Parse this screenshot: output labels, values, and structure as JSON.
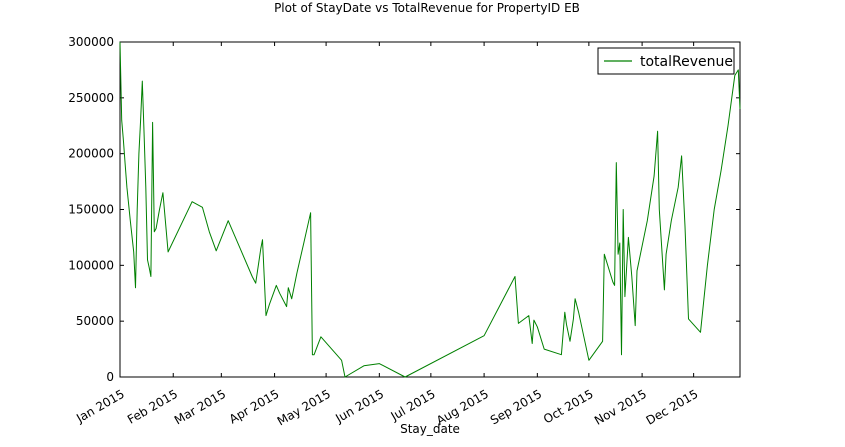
{
  "chart_data": {
    "type": "line",
    "title": "Plot of StayDate vs TotalRevenue for PropertyID EB",
    "xlabel": "Stay_date",
    "ylabel": "",
    "xlim": [
      "2015-01-01",
      "2015-12-28"
    ],
    "ylim": [
      0,
      300000
    ],
    "grid": false,
    "legend_position": "top-right",
    "y_ticks": [
      {
        "value": 0,
        "label": "0"
      },
      {
        "value": 50000,
        "label": "50000"
      },
      {
        "value": 100000,
        "label": "100000"
      },
      {
        "value": 150000,
        "label": "150000"
      },
      {
        "value": 200000,
        "label": "200000"
      },
      {
        "value": 250000,
        "label": "250000"
      },
      {
        "value": 300000,
        "label": "300000"
      }
    ],
    "x_ticks": [
      {
        "date": "2015-01-01",
        "label": "Jan 2015"
      },
      {
        "date": "2015-02-01",
        "label": "Feb 2015"
      },
      {
        "date": "2015-03-01",
        "label": "Mar 2015"
      },
      {
        "date": "2015-04-01",
        "label": "Apr 2015"
      },
      {
        "date": "2015-05-01",
        "label": "May 2015"
      },
      {
        "date": "2015-06-01",
        "label": "Jun 2015"
      },
      {
        "date": "2015-07-01",
        "label": "Jul 2015"
      },
      {
        "date": "2015-08-01",
        "label": "Aug 2015"
      },
      {
        "date": "2015-09-01",
        "label": "Sep 2015"
      },
      {
        "date": "2015-10-01",
        "label": "Oct 2015"
      },
      {
        "date": "2015-11-01",
        "label": "Nov 2015"
      },
      {
        "date": "2015-12-01",
        "label": "Dec 2015"
      }
    ],
    "series": [
      {
        "name": "totalRevenue",
        "color": "#008000",
        "points": [
          [
            "2015-01-01",
            300000
          ],
          [
            "2015-01-02",
            230000
          ],
          [
            "2015-01-03",
            212000
          ],
          [
            "2015-01-04",
            190000
          ],
          [
            "2015-01-05",
            170000
          ],
          [
            "2015-01-07",
            140000
          ],
          [
            "2015-01-09",
            112000
          ],
          [
            "2015-01-10",
            80000
          ],
          [
            "2015-01-11",
            150000
          ],
          [
            "2015-01-12",
            200000
          ],
          [
            "2015-01-13",
            230000
          ],
          [
            "2015-01-14",
            265000
          ],
          [
            "2015-01-15",
            220000
          ],
          [
            "2015-01-16",
            170000
          ],
          [
            "2015-01-17",
            105000
          ],
          [
            "2015-01-18",
            98000
          ],
          [
            "2015-01-19",
            90000
          ],
          [
            "2015-01-20",
            228000
          ],
          [
            "2015-01-21",
            130000
          ],
          [
            "2015-01-22",
            133000
          ],
          [
            "2015-01-24",
            150000
          ],
          [
            "2015-01-26",
            165000
          ],
          [
            "2015-01-29",
            112000
          ],
          [
            "2015-02-12",
            157000
          ],
          [
            "2015-02-18",
            152000
          ],
          [
            "2015-02-22",
            130000
          ],
          [
            "2015-02-26",
            113000
          ],
          [
            "2015-03-05",
            140000
          ],
          [
            "2015-03-12",
            115000
          ],
          [
            "2015-03-19",
            90000
          ],
          [
            "2015-03-21",
            84000
          ],
          [
            "2015-03-24",
            115000
          ],
          [
            "2015-03-25",
            123000
          ],
          [
            "2015-03-27",
            55000
          ],
          [
            "2015-03-29",
            65000
          ],
          [
            "2015-04-02",
            82000
          ],
          [
            "2015-04-04",
            75000
          ],
          [
            "2015-04-08",
            63000
          ],
          [
            "2015-04-09",
            80000
          ],
          [
            "2015-04-11",
            70000
          ],
          [
            "2015-04-14",
            93000
          ],
          [
            "2015-04-18",
            120000
          ],
          [
            "2015-04-22",
            147000
          ],
          [
            "2015-04-23",
            20000
          ],
          [
            "2015-04-24",
            20000
          ],
          [
            "2015-04-26",
            28000
          ],
          [
            "2015-04-28",
            36000
          ],
          [
            "2015-05-10",
            15000
          ],
          [
            "2015-05-12",
            0
          ],
          [
            "2015-05-23",
            10000
          ],
          [
            "2015-06-01",
            12000
          ],
          [
            "2015-06-16",
            0
          ],
          [
            "2015-08-01",
            37000
          ],
          [
            "2015-08-19",
            90000
          ],
          [
            "2015-08-21",
            48000
          ],
          [
            "2015-08-27",
            55000
          ],
          [
            "2015-08-29",
            30000
          ],
          [
            "2015-08-30",
            51000
          ],
          [
            "2015-09-01",
            45000
          ],
          [
            "2015-09-05",
            25000
          ],
          [
            "2015-09-15",
            20000
          ],
          [
            "2015-09-17",
            58000
          ],
          [
            "2015-09-18",
            47000
          ],
          [
            "2015-09-20",
            32000
          ],
          [
            "2015-09-22",
            52000
          ],
          [
            "2015-09-23",
            70000
          ],
          [
            "2015-09-25",
            58000
          ],
          [
            "2015-10-01",
            15000
          ],
          [
            "2015-10-09",
            32000
          ],
          [
            "2015-10-10",
            110000
          ],
          [
            "2015-10-15",
            85000
          ],
          [
            "2015-10-16",
            82000
          ],
          [
            "2015-10-17",
            192000
          ],
          [
            "2015-10-18",
            110000
          ],
          [
            "2015-10-19",
            120000
          ],
          [
            "2015-10-20",
            20000
          ],
          [
            "2015-10-21",
            150000
          ],
          [
            "2015-10-22",
            72000
          ],
          [
            "2015-10-24",
            125000
          ],
          [
            "2015-10-26",
            90000
          ],
          [
            "2015-10-28",
            46000
          ],
          [
            "2015-10-29",
            95000
          ],
          [
            "2015-11-04",
            140000
          ],
          [
            "2015-11-08",
            180000
          ],
          [
            "2015-11-10",
            220000
          ],
          [
            "2015-11-11",
            150000
          ],
          [
            "2015-11-14",
            78000
          ],
          [
            "2015-11-15",
            110000
          ],
          [
            "2015-11-18",
            140000
          ],
          [
            "2015-11-22",
            170000
          ],
          [
            "2015-11-24",
            198000
          ],
          [
            "2015-11-26",
            135000
          ],
          [
            "2015-11-28",
            52000
          ],
          [
            "2015-12-05",
            40000
          ],
          [
            "2015-12-09",
            100000
          ],
          [
            "2015-12-13",
            150000
          ],
          [
            "2015-12-17",
            185000
          ],
          [
            "2015-12-21",
            225000
          ],
          [
            "2015-12-25",
            270000
          ],
          [
            "2015-12-27",
            275000
          ],
          [
            "2015-12-28",
            240000
          ]
        ]
      }
    ]
  }
}
